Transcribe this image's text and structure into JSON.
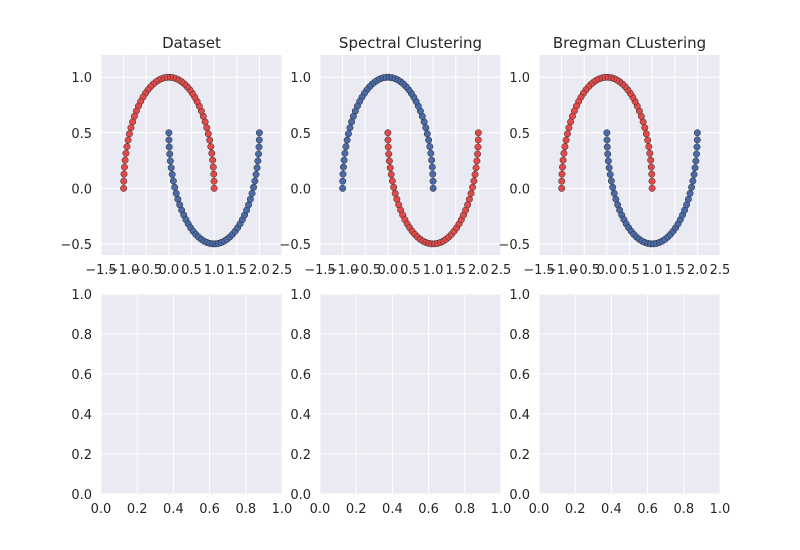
{
  "chart_data": [
    {
      "type": "scatter",
      "title": "Dataset",
      "xlim": [
        -1.5,
        2.5
      ],
      "ylim": [
        -0.6,
        1.2
      ],
      "xticks": [
        "−1.5",
        "−1.0",
        "−0.5",
        "0.0",
        "0.5",
        "1.0",
        "1.5",
        "2.0",
        "2.5"
      ],
      "yticks": [
        "−0.5",
        "0.0",
        "0.5",
        "1.0"
      ],
      "grid": true,
      "series": [
        {
          "label_source": "upper moon",
          "color": "#e24a4a"
        },
        {
          "label_source": "lower moon",
          "color": "#4a6aa8"
        }
      ]
    },
    {
      "type": "scatter",
      "title": "Spectral Clustering",
      "xlim": [
        -1.5,
        2.5
      ],
      "ylim": [
        -0.6,
        1.2
      ],
      "xticks": [
        "−1.5",
        "−1.0",
        "−0.5",
        "0.0",
        "0.5",
        "1.0",
        "1.5",
        "2.0",
        "2.5"
      ],
      "yticks": [
        "−0.5",
        "0.0",
        "0.5",
        "1.0"
      ],
      "grid": true,
      "series": [
        {
          "label_source": "upper moon",
          "color": "#4a6aa8"
        },
        {
          "label_source": "lower moon",
          "color": "#e24a4a"
        }
      ]
    },
    {
      "type": "scatter",
      "title": "Bregman CLustering",
      "xlim": [
        -1.5,
        2.5
      ],
      "ylim": [
        -0.6,
        1.2
      ],
      "xticks": [
        "−1.5",
        "−1.0",
        "−0.5",
        "0.0",
        "0.5",
        "1.0",
        "1.5",
        "2.0",
        "2.5"
      ],
      "yticks": [
        "−0.5",
        "0.0",
        "0.5",
        "1.0"
      ],
      "grid": true,
      "series": [
        {
          "label_source": "upper moon",
          "color": "#e24a4a"
        },
        {
          "label_source": "lower moon",
          "color": "#4a6aa8"
        }
      ]
    },
    {
      "type": "scatter",
      "title": "",
      "xlim": [
        0,
        1
      ],
      "ylim": [
        0,
        1
      ],
      "xticks": [
        "0.0",
        "0.2",
        "0.4",
        "0.6",
        "0.8",
        "1.0"
      ],
      "yticks": [
        "0.0",
        "0.2",
        "0.4",
        "0.6",
        "0.8",
        "1.0"
      ],
      "grid": true,
      "series": []
    },
    {
      "type": "scatter",
      "title": "",
      "xlim": [
        0,
        1
      ],
      "ylim": [
        0,
        1
      ],
      "xticks": [
        "0.0",
        "0.2",
        "0.4",
        "0.6",
        "0.8",
        "1.0"
      ],
      "yticks": [
        "0.0",
        "0.2",
        "0.4",
        "0.6",
        "0.8",
        "1.0"
      ],
      "grid": true,
      "series": []
    },
    {
      "type": "scatter",
      "title": "",
      "xlim": [
        0,
        1
      ],
      "ylim": [
        0,
        1
      ],
      "xticks": [
        "0.0",
        "0.2",
        "0.4",
        "0.6",
        "0.8",
        "1.0"
      ],
      "yticks": [
        "0.0",
        "0.2",
        "0.4",
        "0.6",
        "0.8",
        "1.0"
      ],
      "grid": true,
      "series": []
    }
  ],
  "moons": {
    "n_per_moon": 50,
    "upper": {
      "center": [
        0,
        0
      ],
      "radius": 1,
      "theta_from": 0,
      "theta_to": 180
    },
    "lower": {
      "center": [
        1,
        0.5
      ],
      "radius": 1,
      "theta_from": 180,
      "theta_to": 360
    }
  }
}
